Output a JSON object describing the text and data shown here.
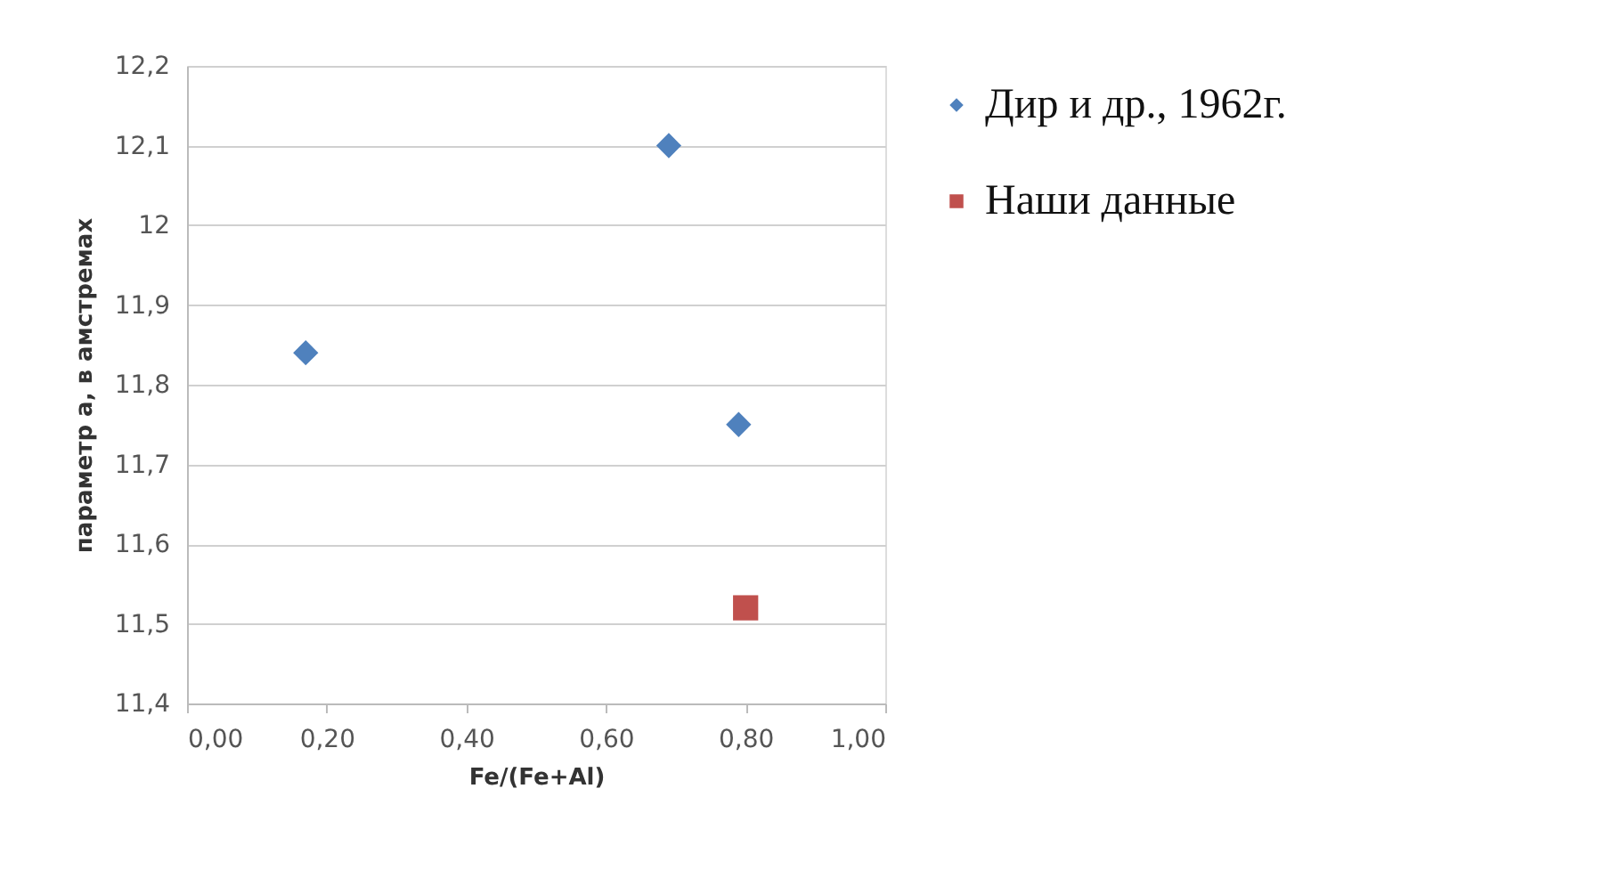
{
  "chart_data": {
    "type": "scatter",
    "xlabel": "Fe/(Fe+Al)",
    "ylabel": "параметр а, в амстремах",
    "xlim": [
      0,
      1
    ],
    "xticks": [
      {
        "value": 0,
        "label": "0,00"
      },
      {
        "value": 0.2,
        "label": "0,20"
      },
      {
        "value": 0.4,
        "label": "0,40"
      },
      {
        "value": 0.6,
        "label": "0,60"
      },
      {
        "value": 0.8,
        "label": "0,80"
      },
      {
        "value": 1,
        "label": "1,00"
      }
    ],
    "ylim": [
      11.4,
      12.2
    ],
    "yticks": [
      {
        "value": 11.4,
        "label": "11,4"
      },
      {
        "value": 11.5,
        "label": "11,5"
      },
      {
        "value": 11.6,
        "label": "11,6"
      },
      {
        "value": 11.7,
        "label": "11,7"
      },
      {
        "value": 11.8,
        "label": "11,8"
      },
      {
        "value": 11.9,
        "label": "11,9"
      },
      {
        "value": 12,
        "label": "12"
      },
      {
        "value": 12.1,
        "label": "12,1"
      },
      {
        "value": 12.2,
        "label": "12,2"
      }
    ],
    "grid": "y",
    "legend": "right",
    "series": [
      {
        "name": "Дир и др., 1962г.",
        "color": "#4f81bd",
        "marker": "diamond",
        "x": [
          0.17,
          0.69,
          0.79
        ],
        "values": [
          11.84,
          12.1,
          11.75
        ]
      },
      {
        "name": "Наши данные",
        "color": "#c0504d",
        "marker": "square",
        "x": [
          0.8
        ],
        "values": [
          11.52
        ]
      }
    ]
  }
}
